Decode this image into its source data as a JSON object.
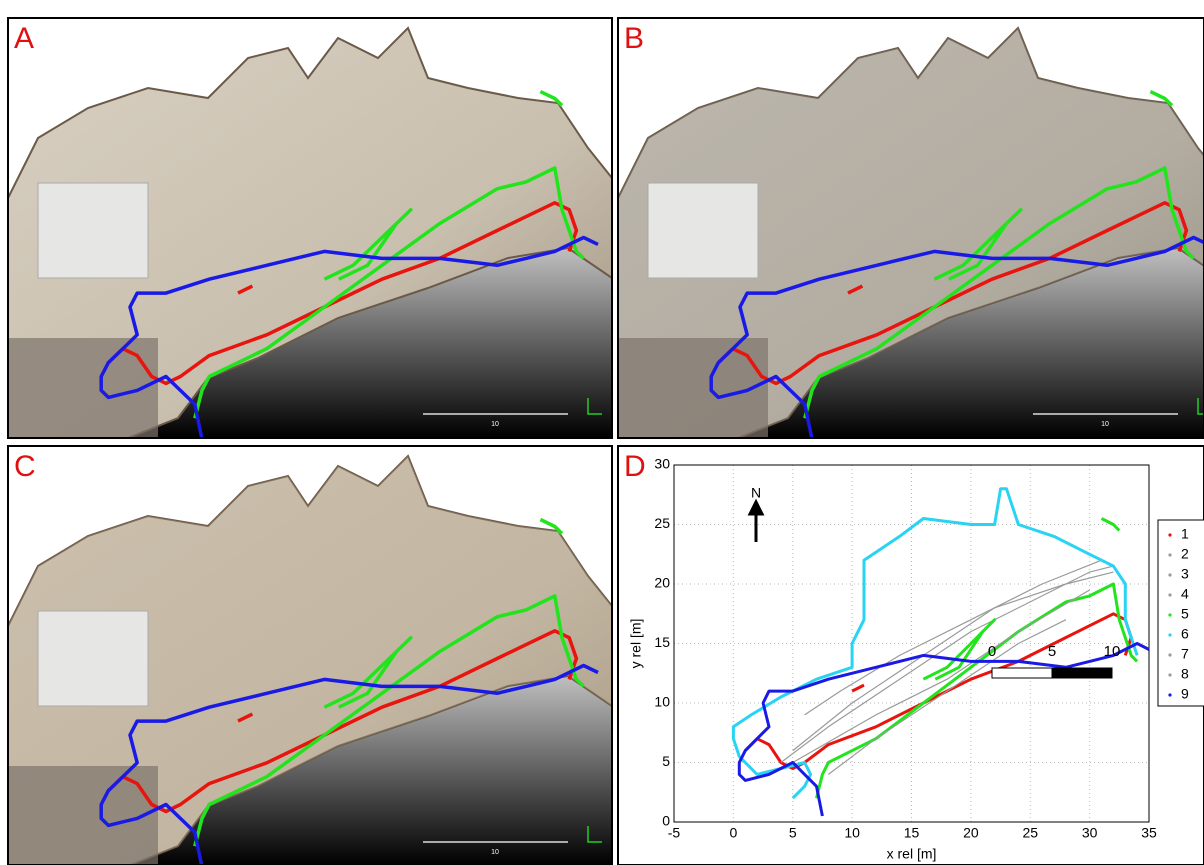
{
  "panels": [
    {
      "label": "A",
      "scale_label": "10"
    },
    {
      "label": "B",
      "scale_label": "10"
    },
    {
      "label": "C",
      "scale_label": "10"
    },
    {
      "label": "D"
    }
  ],
  "chart_data": {
    "type": "line",
    "xlabel": "x rel [m]",
    "ylabel": "y rel [m]",
    "north_label": "N",
    "scale_bar": [
      0,
      5,
      10
    ],
    "xlim": [
      -5,
      35
    ],
    "ylim": [
      0,
      30
    ],
    "xticks": [
      -5,
      0,
      5,
      10,
      15,
      20,
      25,
      30,
      35
    ],
    "yticks": [
      0,
      5,
      10,
      15,
      20,
      25,
      30
    ],
    "grid": true,
    "series": [
      {
        "name": "1",
        "color": "#e8140e",
        "x": [
          1,
          2,
          3,
          4,
          5,
          6,
          8,
          12,
          16,
          20,
          24,
          28,
          32,
          33,
          33.5,
          33,
          null,
          10,
          11
        ],
        "y": [
          6,
          7,
          6.5,
          5,
          4.5,
          5,
          6.5,
          8,
          10,
          12,
          13.5,
          15.5,
          17.5,
          17,
          15.5,
          14,
          null,
          11,
          11.5
        ]
      },
      {
        "name": "2",
        "color": "#9a9a9a",
        "x": [
          4,
          8,
          14,
          20,
          26,
          30,
          32
        ],
        "y": [
          5,
          8,
          12,
          16,
          19,
          21,
          21.5
        ]
      },
      {
        "name": "3",
        "color": "#9a9a9a",
        "x": [
          5,
          10,
          16,
          22,
          28,
          32
        ],
        "y": [
          6,
          10,
          14,
          18,
          20,
          21
        ]
      },
      {
        "name": "4",
        "color": "#9a9a9a",
        "x": [
          6,
          9,
          14,
          20,
          26,
          31
        ],
        "y": [
          9,
          11,
          14,
          17,
          20,
          22
        ]
      },
      {
        "name": "5",
        "color": "#22e41c",
        "x": [
          7,
          7.5,
          8,
          12,
          16,
          20,
          24,
          28,
          30,
          32,
          32.5,
          33.5,
          34,
          null,
          16,
          18,
          20,
          22,
          21,
          19,
          17,
          null,
          31,
          32,
          32.5
        ],
        "y": [
          2,
          4,
          5,
          7,
          10,
          13,
          16,
          18.5,
          19,
          20,
          17,
          14,
          13.5,
          null,
          12,
          13,
          15,
          17,
          16,
          13,
          12,
          null,
          25.5,
          25,
          24.5
        ]
      },
      {
        "name": "6",
        "color": "#29d3f2",
        "x": [
          5,
          6,
          6.5,
          6,
          4,
          2,
          0.5,
          0,
          0,
          1.5,
          4,
          7,
          10,
          10,
          11,
          11,
          14,
          16,
          20,
          22,
          22.5,
          23,
          24,
          27,
          30,
          31,
          32,
          33,
          33,
          34
        ],
        "y": [
          2,
          3,
          4,
          5,
          4.5,
          4,
          5.5,
          7,
          8,
          9,
          10.5,
          12,
          13,
          15,
          17,
          22,
          24,
          25.5,
          25,
          25,
          28,
          28,
          25,
          24,
          22.5,
          22,
          21.5,
          20,
          17,
          14
        ]
      },
      {
        "name": "7",
        "color": "#9a9a9a",
        "x": [
          5,
          12,
          18,
          24,
          30
        ],
        "y": [
          5,
          9,
          12,
          16,
          19.5
        ]
      },
      {
        "name": "8",
        "color": "#9a9a9a",
        "x": [
          8,
          12,
          18,
          24,
          28
        ],
        "y": [
          4,
          7,
          11,
          15,
          17
        ]
      },
      {
        "name": "9",
        "color": "#1a1ae6",
        "x": [
          7.5,
          7,
          6,
          5,
          3,
          1,
          0.5,
          0.5,
          1,
          2,
          3,
          2.5,
          3,
          5,
          8,
          12,
          16,
          20,
          24,
          28,
          30,
          32,
          34,
          35
        ],
        "y": [
          0.5,
          3,
          4,
          5,
          4,
          3.5,
          4,
          5,
          6,
          7,
          8,
          10,
          11,
          11,
          12,
          13,
          14,
          13.5,
          13.5,
          13,
          13.5,
          14,
          15,
          14.5
        ]
      }
    ]
  }
}
